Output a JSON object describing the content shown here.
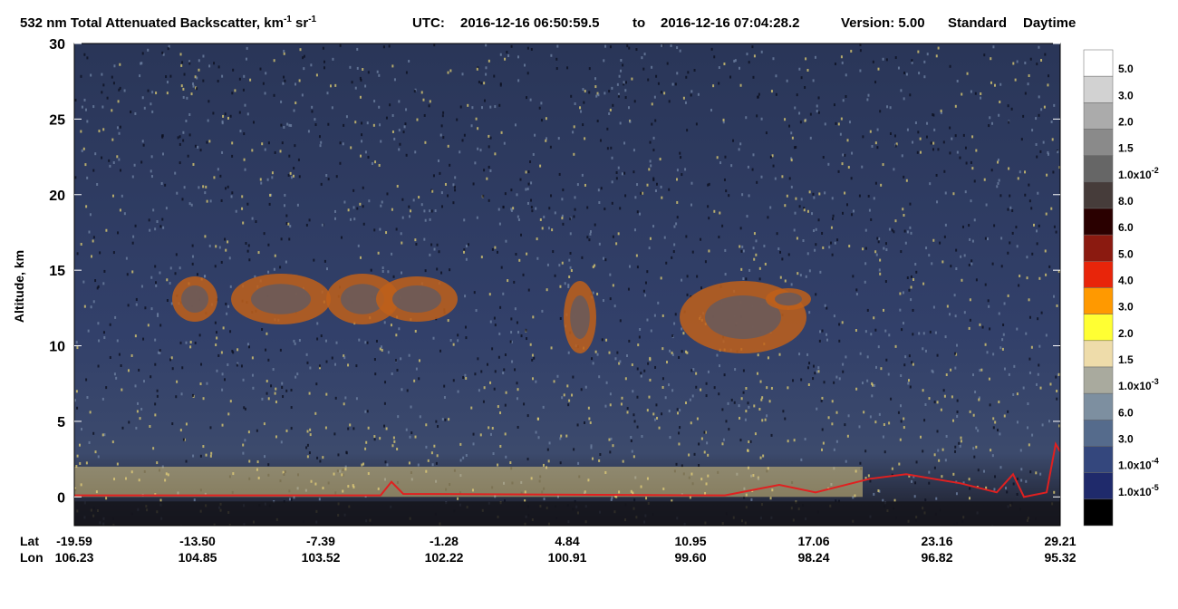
{
  "chart_data": {
    "type": "heatmap",
    "title": {
      "text": "532 nm Total Attenuated Backscatter, km",
      "sup": "-1",
      "text2": " sr",
      "sup2": "-1"
    },
    "utc": "UTC:",
    "start": "2016-12-16 06:50:59.5",
    "to": "to",
    "end": "2016-12-16 07:04:28.2",
    "version": "Version: 5.00",
    "mode": "Standard",
    "light": "Daytime",
    "ylabel": "Altitude, km",
    "ylim": [
      -1.9,
      30
    ],
    "yticks": [
      0,
      5,
      10,
      15,
      20,
      25,
      30
    ],
    "x_rows": [
      {
        "name": "Lat",
        "labels": [
          "-19.59",
          "-13.50",
          "-7.39",
          "-1.28",
          "4.84",
          "10.95",
          "17.06",
          "23.16",
          "29.21"
        ]
      },
      {
        "name": "Lon",
        "labels": [
          "106.23",
          "104.85",
          "103.52",
          "102.22",
          "100.91",
          "99.60",
          "98.24",
          "96.82",
          "95.32"
        ]
      }
    ],
    "colorbar": {
      "colors": [
        "#ffffff",
        "#d2d2d2",
        "#ababab",
        "#8a8a8a",
        "#666666",
        "#463c3a",
        "#2a0000",
        "#8b1a10",
        "#e8250a",
        "#ff9900",
        "#ffff33",
        "#eedcaa",
        "#a9aa9e",
        "#7d8fa0",
        "#556b8c",
        "#34477d",
        "#1f2a6b",
        "#000000"
      ],
      "labels": [
        {
          "text": "5.0"
        },
        {
          "text": "3.0"
        },
        {
          "text": "2.0"
        },
        {
          "text": "1.5"
        },
        {
          "text": "1.0x10",
          "exp": "-2"
        },
        {
          "text": "8.0"
        },
        {
          "text": "6.0"
        },
        {
          "text": "5.0"
        },
        {
          "text": "4.0"
        },
        {
          "text": "3.0"
        },
        {
          "text": "2.0"
        },
        {
          "text": "1.5"
        },
        {
          "text": "1.0x10",
          "exp": "-3"
        },
        {
          "text": "6.0"
        },
        {
          "text": "3.0"
        },
        {
          "text": "1.0x10",
          "exp": "-4"
        },
        {
          "text": "1.0x10",
          "exp": "-5"
        }
      ]
    }
  }
}
